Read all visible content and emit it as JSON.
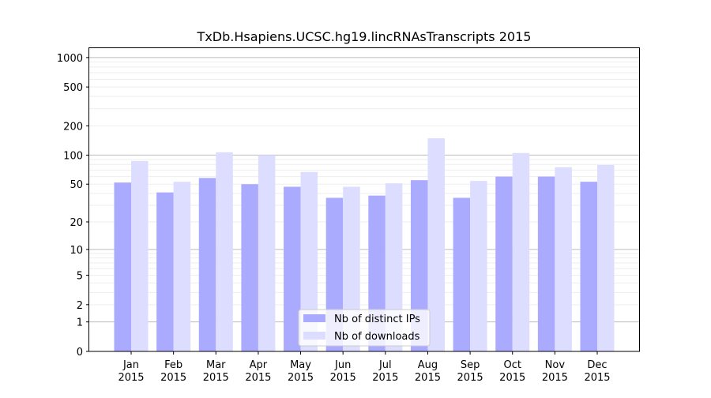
{
  "chart_data": {
    "type": "bar",
    "title": "TxDb.Hsapiens.UCSC.hg19.lincRNAsTranscripts 2015",
    "xlabel": "",
    "ylabel": "",
    "y_scale": "log(1+y)",
    "ylim": [
      0,
      1270
    ],
    "yticks": [
      0,
      1,
      2,
      5,
      10,
      20,
      50,
      100,
      200,
      500,
      1000
    ],
    "grid": true,
    "legend_position": "bottom-center",
    "categories": [
      [
        "Jan",
        "2015"
      ],
      [
        "Feb",
        "2015"
      ],
      [
        "Mar",
        "2015"
      ],
      [
        "Apr",
        "2015"
      ],
      [
        "May",
        "2015"
      ],
      [
        "Jun",
        "2015"
      ],
      [
        "Jul",
        "2015"
      ],
      [
        "Aug",
        "2015"
      ],
      [
        "Sep",
        "2015"
      ],
      [
        "Oct",
        "2015"
      ],
      [
        "Nov",
        "2015"
      ],
      [
        "Dec",
        "2015"
      ]
    ],
    "series": [
      {
        "name": "Nb of distinct IPs",
        "color": "#aaaaff",
        "values": [
          52,
          41,
          58,
          50,
          47,
          36,
          38,
          55,
          36,
          60,
          60,
          53
        ]
      },
      {
        "name": "Nb of downloads",
        "color": "#ddddff",
        "values": [
          87,
          53,
          107,
          100,
          67,
          47,
          51,
          149,
          54,
          105,
          75,
          79
        ]
      }
    ]
  }
}
